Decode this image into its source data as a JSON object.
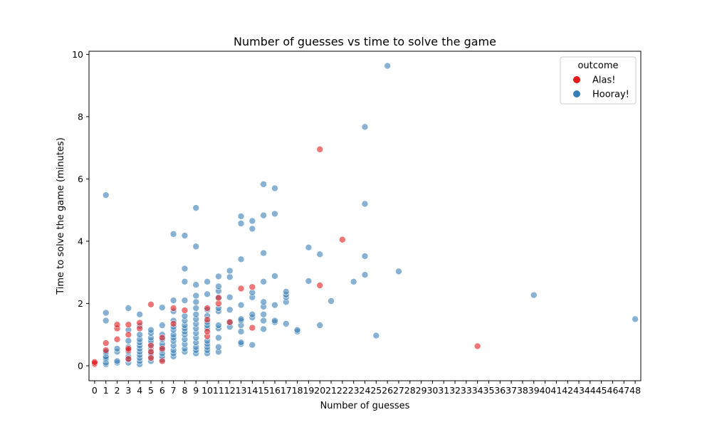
{
  "chart_data": {
    "type": "scatter",
    "title": "Number of guesses vs time to solve the game",
    "xlabel": "Number of guesses",
    "ylabel": "Time to solve the game (minutes)",
    "x_ticks": [
      "0",
      "1",
      "2",
      "3",
      "4",
      "5",
      "6",
      "7",
      "8",
      "9",
      "10",
      "11",
      "12",
      "13",
      "14",
      "15",
      "16",
      "17",
      "18",
      "19",
      "20",
      "21",
      "22",
      "23",
      "24",
      "25",
      "26",
      "27",
      "28",
      "29",
      "30",
      "31",
      "32",
      "33",
      "34",
      "35",
      "36",
      "37",
      "38",
      "39",
      "40",
      "41",
      "42",
      "43",
      "44",
      "45",
      "46",
      "47",
      "48"
    ],
    "y_ticks": [
      "0",
      "2",
      "4",
      "6",
      "8",
      "10"
    ],
    "xlim": [
      -0.5,
      48.5
    ],
    "ylim": [
      -0.48,
      10.1
    ],
    "grid": false,
    "legend": {
      "title": "outcome",
      "placement": "top-right"
    },
    "series": [
      {
        "name": "Alas!",
        "color": "#e41a1c",
        "points": [
          [
            0,
            0.05
          ],
          [
            0,
            0.08
          ],
          [
            0,
            0.12
          ],
          [
            1,
            0.5
          ],
          [
            1,
            0.73
          ],
          [
            2,
            0.85
          ],
          [
            2,
            1.2
          ],
          [
            2,
            1.32
          ],
          [
            3,
            0.22
          ],
          [
            3,
            0.5
          ],
          [
            3,
            0.55
          ],
          [
            3,
            1.0
          ],
          [
            3,
            1.32
          ],
          [
            4,
            1.2
          ],
          [
            4,
            1.38
          ],
          [
            5,
            0.25
          ],
          [
            5,
            0.45
          ],
          [
            5,
            0.65
          ],
          [
            5,
            1.97
          ],
          [
            6,
            0.15
          ],
          [
            6,
            0.55
          ],
          [
            6,
            0.9
          ],
          [
            7,
            1.35
          ],
          [
            7,
            1.85
          ],
          [
            8,
            1.78
          ],
          [
            10,
            0.95
          ],
          [
            10,
            1.1
          ],
          [
            10,
            1.48
          ],
          [
            10,
            1.85
          ],
          [
            11,
            2.0
          ],
          [
            11,
            2.18
          ],
          [
            12,
            1.4
          ],
          [
            13,
            2.48
          ],
          [
            14,
            1.22
          ],
          [
            14,
            2.53
          ],
          [
            20,
            2.58
          ],
          [
            20,
            6.95
          ],
          [
            22,
            4.05
          ],
          [
            34,
            0.63
          ]
        ]
      },
      {
        "name": "Hooray!",
        "color": "#377eb8",
        "points": [
          [
            1,
            0.05
          ],
          [
            1,
            0.1
          ],
          [
            1,
            0.2
          ],
          [
            1,
            0.25
          ],
          [
            1,
            0.3
          ],
          [
            1,
            0.4
          ],
          [
            1,
            0.45
          ],
          [
            1,
            1.45
          ],
          [
            1,
            1.7
          ],
          [
            1,
            5.48
          ],
          [
            2,
            0.1
          ],
          [
            2,
            0.15
          ],
          [
            2,
            0.45
          ],
          [
            2,
            0.55
          ],
          [
            3,
            0.1
          ],
          [
            3,
            0.2
          ],
          [
            3,
            0.3
          ],
          [
            3,
            0.45
          ],
          [
            3,
            0.6
          ],
          [
            3,
            0.8
          ],
          [
            3,
            1.15
          ],
          [
            3,
            1.85
          ],
          [
            4,
            0.05
          ],
          [
            4,
            0.15
          ],
          [
            4,
            0.25
          ],
          [
            4,
            0.35
          ],
          [
            4,
            0.45
          ],
          [
            4,
            0.55
          ],
          [
            4,
            0.65
          ],
          [
            4,
            0.75
          ],
          [
            4,
            0.85
          ],
          [
            4,
            1.0
          ],
          [
            4,
            1.28
          ],
          [
            4,
            1.65
          ],
          [
            5,
            0.15
          ],
          [
            5,
            0.3
          ],
          [
            5,
            0.4
          ],
          [
            5,
            0.55
          ],
          [
            5,
            0.7
          ],
          [
            5,
            0.8
          ],
          [
            5,
            0.9
          ],
          [
            5,
            1.05
          ],
          [
            5,
            1.15
          ],
          [
            6,
            0.2
          ],
          [
            6,
            0.3
          ],
          [
            6,
            0.4
          ],
          [
            6,
            0.5
          ],
          [
            6,
            0.6
          ],
          [
            6,
            0.7
          ],
          [
            6,
            0.85
          ],
          [
            6,
            1.0
          ],
          [
            6,
            1.3
          ],
          [
            6,
            1.87
          ],
          [
            7,
            0.3
          ],
          [
            7,
            0.4
          ],
          [
            7,
            0.5
          ],
          [
            7,
            0.65
          ],
          [
            7,
            0.8
          ],
          [
            7,
            0.9
          ],
          [
            7,
            1.0
          ],
          [
            7,
            1.15
          ],
          [
            7,
            1.25
          ],
          [
            7,
            1.45
          ],
          [
            7,
            1.75
          ],
          [
            7,
            2.1
          ],
          [
            7,
            4.23
          ],
          [
            8,
            0.45
          ],
          [
            8,
            0.55
          ],
          [
            8,
            0.7
          ],
          [
            8,
            0.85
          ],
          [
            8,
            1.0
          ],
          [
            8,
            1.1
          ],
          [
            8,
            1.2
          ],
          [
            8,
            1.3
          ],
          [
            8,
            1.45
          ],
          [
            8,
            1.6
          ],
          [
            8,
            2.1
          ],
          [
            8,
            2.7
          ],
          [
            8,
            3.12
          ],
          [
            8,
            4.18
          ],
          [
            9,
            0.4
          ],
          [
            9,
            0.5
          ],
          [
            9,
            0.6
          ],
          [
            9,
            0.75
          ],
          [
            9,
            0.9
          ],
          [
            9,
            1.05
          ],
          [
            9,
            1.2
          ],
          [
            9,
            1.35
          ],
          [
            9,
            1.5
          ],
          [
            9,
            1.65
          ],
          [
            9,
            1.85
          ],
          [
            9,
            2.05
          ],
          [
            9,
            2.25
          ],
          [
            9,
            2.6
          ],
          [
            9,
            3.83
          ],
          [
            9,
            5.07
          ],
          [
            10,
            0.4
          ],
          [
            10,
            0.5
          ],
          [
            10,
            0.6
          ],
          [
            10,
            0.7
          ],
          [
            10,
            0.8
          ],
          [
            10,
            1.2
          ],
          [
            10,
            1.3
          ],
          [
            10,
            1.4
          ],
          [
            10,
            1.6
          ],
          [
            10,
            1.8
          ],
          [
            10,
            2.3
          ],
          [
            10,
            2.7
          ],
          [
            11,
            0.45
          ],
          [
            11,
            0.6
          ],
          [
            11,
            0.9
          ],
          [
            11,
            1.2
          ],
          [
            11,
            1.3
          ],
          [
            11,
            1.75
          ],
          [
            11,
            1.85
          ],
          [
            11,
            2.2
          ],
          [
            11,
            2.4
          ],
          [
            11,
            2.55
          ],
          [
            11,
            2.87
          ],
          [
            12,
            1.25
          ],
          [
            12,
            1.4
          ],
          [
            12,
            1.8
          ],
          [
            12,
            2.2
          ],
          [
            12,
            2.85
          ],
          [
            12,
            3.05
          ],
          [
            13,
            0.7
          ],
          [
            13,
            0.75
          ],
          [
            13,
            1.1
          ],
          [
            13,
            1.3
          ],
          [
            13,
            1.45
          ],
          [
            13,
            1.5
          ],
          [
            13,
            1.95
          ],
          [
            13,
            3.42
          ],
          [
            13,
            4.57
          ],
          [
            13,
            4.8
          ],
          [
            14,
            0.67
          ],
          [
            14,
            1.55
          ],
          [
            14,
            1.65
          ],
          [
            14,
            2.2
          ],
          [
            14,
            2.35
          ],
          [
            14,
            4.4
          ],
          [
            14,
            4.65
          ],
          [
            15,
            1.18
          ],
          [
            15,
            1.45
          ],
          [
            15,
            1.65
          ],
          [
            15,
            1.9
          ],
          [
            15,
            2.05
          ],
          [
            15,
            2.7
          ],
          [
            15,
            3.62
          ],
          [
            15,
            4.83
          ],
          [
            15,
            5.83
          ],
          [
            16,
            1.4
          ],
          [
            16,
            1.45
          ],
          [
            16,
            1.95
          ],
          [
            16,
            2.88
          ],
          [
            16,
            4.88
          ],
          [
            16,
            5.7
          ],
          [
            17,
            1.35
          ],
          [
            17,
            2.05
          ],
          [
            17,
            2.2
          ],
          [
            17,
            2.28
          ],
          [
            17,
            2.38
          ],
          [
            18,
            1.1
          ],
          [
            18,
            1.15
          ],
          [
            19,
            2.72
          ],
          [
            19,
            3.8
          ],
          [
            20,
            1.3
          ],
          [
            20,
            3.58
          ],
          [
            21,
            2.08
          ],
          [
            23,
            2.7
          ],
          [
            24,
            2.92
          ],
          [
            24,
            3.52
          ],
          [
            24,
            5.2
          ],
          [
            24,
            7.67
          ],
          [
            25,
            0.97
          ],
          [
            26,
            9.63
          ],
          [
            27,
            3.03
          ],
          [
            39,
            2.27
          ],
          [
            48,
            1.5
          ]
        ]
      }
    ]
  }
}
